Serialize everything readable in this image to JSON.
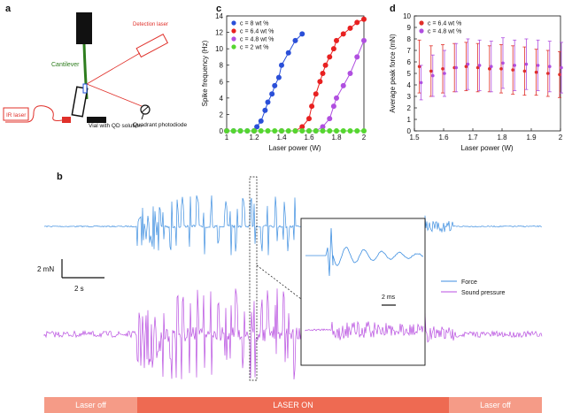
{
  "panel_labels": {
    "a": "a",
    "b": "b",
    "c": "c",
    "d": "d"
  },
  "schematic": {
    "cantilever": "Cantilever",
    "detection_laser": "Detection laser",
    "ir_laser": "IR laser",
    "vial": "Vial with QD solution",
    "photodiode": "Quadrant photodiode",
    "colors": {
      "green": "#2e7d1e",
      "red": "#e0302a",
      "blue": "#1f4fd8"
    }
  },
  "chart_data": [
    {
      "panel": "c",
      "type": "line",
      "title": "",
      "xlabel": "Laser power (W)",
      "ylabel": "Spike frequency (Hz)",
      "xlim": [
        1,
        2
      ],
      "ylim": [
        0,
        14
      ],
      "xticks": [
        "1",
        "1.2",
        "1.4",
        "1.6",
        "1.8",
        "2"
      ],
      "yticks": [
        "0",
        "2",
        "4",
        "6",
        "8",
        "10",
        "12",
        "14"
      ],
      "series": [
        {
          "name": "c = 8 wt %",
          "color": "#2a4fd8",
          "x": [
            1.0,
            1.05,
            1.1,
            1.15,
            1.2,
            1.22,
            1.25,
            1.28,
            1.3,
            1.33,
            1.35,
            1.38,
            1.4,
            1.45,
            1.5,
            1.55
          ],
          "y": [
            0,
            0,
            0,
            0,
            0,
            0.5,
            1.2,
            2.5,
            3.5,
            4.5,
            5.5,
            6.5,
            8,
            9.5,
            11,
            11.8
          ]
        },
        {
          "name": "c = 6.4 wt %",
          "color": "#e82020",
          "x": [
            1.0,
            1.2,
            1.4,
            1.5,
            1.55,
            1.6,
            1.62,
            1.65,
            1.68,
            1.7,
            1.72,
            1.75,
            1.78,
            1.8,
            1.85,
            1.9,
            1.95,
            2.0
          ],
          "y": [
            0,
            0,
            0,
            0,
            0.5,
            1.5,
            3,
            4.5,
            6,
            7,
            8,
            9,
            10,
            11,
            11.8,
            12.5,
            13.2,
            13.6
          ]
        },
        {
          "name": "c = 4.8 wt %",
          "color": "#b04fe0",
          "x": [
            1.0,
            1.2,
            1.4,
            1.6,
            1.65,
            1.7,
            1.75,
            1.78,
            1.8,
            1.85,
            1.9,
            1.95,
            2.0
          ],
          "y": [
            0,
            0,
            0,
            0,
            0,
            0.5,
            1.5,
            3,
            4,
            5.5,
            7,
            9,
            11
          ]
        },
        {
          "name": "c = 2 wt %",
          "color": "#55d630",
          "x": [
            1.0,
            1.05,
            1.1,
            1.15,
            1.2,
            1.25,
            1.3,
            1.35,
            1.4,
            1.45,
            1.5,
            1.55,
            1.6,
            1.65,
            1.7,
            1.75,
            1.8,
            1.85,
            1.9,
            1.95,
            2.0
          ],
          "y": [
            0,
            0,
            0,
            0,
            0,
            0,
            0,
            0,
            0,
            0,
            0,
            0,
            0,
            0,
            0,
            0,
            0,
            0,
            0,
            0,
            0
          ]
        }
      ]
    },
    {
      "panel": "d",
      "type": "scatter",
      "title": "",
      "xlabel": "Laser power (W)",
      "ylabel": "Average peak force (mN)",
      "xlim": [
        1.5,
        2
      ],
      "ylim": [
        0,
        10
      ],
      "xticks": [
        "1.5",
        "1.6",
        "1.7",
        "1.8",
        "1.9",
        "2"
      ],
      "yticks": [
        "0",
        "1",
        "2",
        "3",
        "4",
        "5",
        "6",
        "7",
        "8",
        "9",
        "10"
      ],
      "series": [
        {
          "name": "c = 6.4 wt %",
          "color": "#e0302a",
          "x": [
            1.52,
            1.56,
            1.6,
            1.64,
            1.68,
            1.72,
            1.76,
            1.8,
            1.84,
            1.88,
            1.92,
            1.96,
            2.0
          ],
          "y": [
            5.6,
            5.2,
            5.4,
            5.5,
            5.6,
            5.5,
            5.4,
            5.4,
            5.3,
            5.2,
            5.1,
            5.0,
            4.9
          ],
          "err": [
            2.3,
            2.2,
            2.1,
            2.1,
            2.1,
            2.1,
            2.0,
            2.1,
            2.1,
            2.1,
            2.0,
            2.0,
            2.0
          ]
        },
        {
          "name": "c = 4.8 wt %",
          "color": "#b04fe0",
          "x": [
            1.52,
            1.56,
            1.6,
            1.64,
            1.68,
            1.72,
            1.76,
            1.8,
            1.84,
            1.88,
            1.92,
            1.96,
            2.0
          ],
          "y": [
            4.2,
            4.8,
            5.0,
            5.5,
            5.8,
            5.7,
            5.6,
            5.9,
            5.7,
            5.8,
            5.7,
            5.6,
            5.5
          ],
          "err": [
            1.5,
            1.8,
            2.0,
            2.1,
            2.2,
            2.2,
            2.2,
            2.2,
            2.2,
            2.2,
            2.2,
            2.2,
            2.2
          ]
        }
      ]
    }
  ],
  "traces": {
    "force_label": "Force",
    "sound_label": "Sound pressure",
    "force_color": "#3d8ee0",
    "sound_color": "#b84fe0",
    "scale_force": "2 mN",
    "scale_time": "2 s",
    "inset_scale": "2 ms"
  },
  "laser_bar": {
    "off_left": "Laser off",
    "on": "LASER ON",
    "off_right": "Laser off",
    "off_color": "#f59b87",
    "on_color": "#ee6a52"
  }
}
